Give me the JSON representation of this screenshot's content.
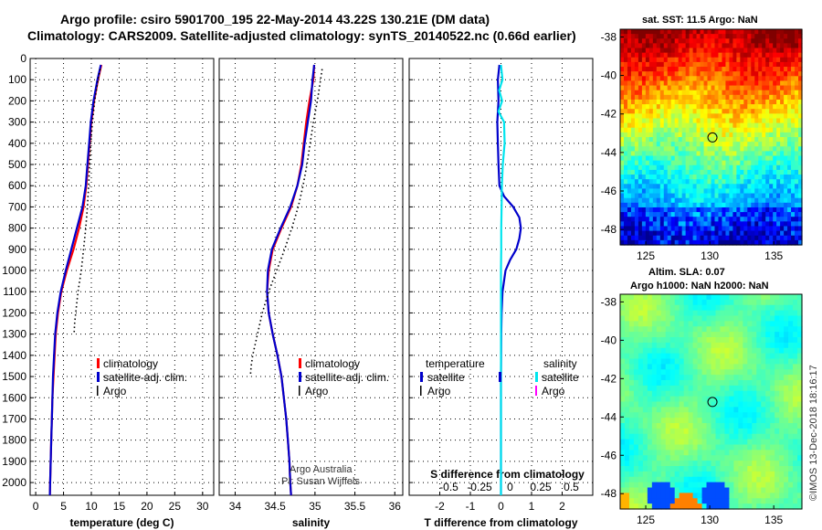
{
  "title_line1": "Argo profile: csiro 5901700_195 22-May-2014 43.22S 130.21E (DM data)",
  "title_line2": "Climatology: CARS2009. Satellite-adjusted climatology: synTS_20140522.nc (0.66d earlier)",
  "colors": {
    "climatology": "#ff0000",
    "satellite": "#0000cc",
    "argo": "#000000",
    "salinity_sat": "#00e5ee",
    "salinity_argo": "#ff00ff"
  },
  "credit": {
    "line1": "Argo Australia",
    "line2": "PI: Susan Wijffels"
  },
  "watermark": "©IMOS 13-Dec-2018 18:16:17",
  "legend": {
    "climatology": "climatology",
    "satellite_adj": "satellite-adj. clim.",
    "argo": "Argo",
    "temperature": "temperature",
    "salinity": "salinity",
    "satellite": "satellite"
  },
  "maps": {
    "sst_title": "sat. SST: 11.5 Argo: NaN",
    "sla_title1": "Altim. SLA: 0.07",
    "sla_title2": "Argo h1000: NaN h2000: NaN",
    "lat_ticks": [
      "-38",
      "-40",
      "-42",
      "-44",
      "-46",
      "-48"
    ],
    "lon_ticks": [
      "125",
      "130",
      "135"
    ],
    "lat_range": [
      -48.8,
      -37.6
    ],
    "lon_range": [
      123.0,
      137.2
    ],
    "float_lat": -43.22,
    "float_lon": 130.21
  },
  "chart_data": [
    {
      "type": "line",
      "xlabel": "temperature (deg C)",
      "ylabel": "",
      "xlim": [
        -1,
        32
      ],
      "ylim": [
        2060,
        0
      ],
      "xticks": [
        0,
        5,
        10,
        15,
        20,
        25,
        30
      ],
      "yticks": [
        0,
        100,
        200,
        300,
        400,
        500,
        600,
        700,
        800,
        900,
        1000,
        1100,
        1200,
        1300,
        1400,
        1500,
        1600,
        1700,
        1800,
        1900,
        2000
      ],
      "series": [
        {
          "name": "climatology",
          "depth": [
            30,
            100,
            200,
            300,
            400,
            500,
            600,
            700,
            800,
            900,
            1000,
            1100,
            1200,
            1300,
            1400,
            1500,
            1600,
            1700,
            1800,
            1900,
            2000,
            2060
          ],
          "values": [
            11.8,
            11.2,
            10.5,
            10.0,
            9.7,
            9.4,
            9.1,
            8.6,
            7.8,
            6.8,
            5.6,
            4.6,
            4.0,
            3.6,
            3.4,
            3.2,
            3.0,
            2.9,
            2.8,
            2.7,
            2.6,
            2.55
          ]
        },
        {
          "name": "satellite-adj. clim.",
          "depth": [
            30,
            100,
            200,
            300,
            400,
            500,
            600,
            700,
            800,
            900,
            1000,
            1100,
            1200,
            1300,
            1400,
            1500,
            1600,
            1700,
            1800,
            1900,
            2000,
            2060
          ],
          "values": [
            11.7,
            11.1,
            10.4,
            9.9,
            9.6,
            9.3,
            9.0,
            8.4,
            7.4,
            6.4,
            5.4,
            4.5,
            3.9,
            3.5,
            3.3,
            3.1,
            3.0,
            2.9,
            2.8,
            2.7,
            2.6,
            2.55
          ]
        },
        {
          "name": "Argo",
          "depth": [
            50,
            100,
            200,
            300,
            400,
            500,
            600,
            700,
            800,
            900,
            1000,
            1100,
            1200,
            1250,
            1300
          ],
          "values": [
            11.6,
            11.2,
            10.6,
            10.2,
            9.9,
            9.7,
            9.5,
            9.3,
            9.0,
            8.6,
            8.2,
            7.6,
            7.2,
            7.0,
            6.9
          ]
        }
      ]
    },
    {
      "type": "line",
      "xlabel": "salinity",
      "ylabel": "",
      "xlim": [
        33.8,
        36.1
      ],
      "ylim": [
        2060,
        0
      ],
      "xticks": [
        34,
        34.5,
        35,
        35.5,
        36
      ],
      "series": [
        {
          "name": "climatology",
          "depth": [
            30,
            100,
            200,
            300,
            400,
            500,
            600,
            700,
            800,
            900,
            1000,
            1100,
            1200,
            1300,
            1400,
            1500,
            1600,
            1700,
            1800,
            1900,
            2000,
            2060
          ],
          "values": [
            34.99,
            34.98,
            34.93,
            34.89,
            34.86,
            34.83,
            34.78,
            34.7,
            34.58,
            34.47,
            34.42,
            34.4,
            34.42,
            34.47,
            34.53,
            34.58,
            34.61,
            34.64,
            34.66,
            34.68,
            34.69,
            34.7
          ]
        },
        {
          "name": "satellite-adj. clim.",
          "depth": [
            30,
            100,
            200,
            300,
            400,
            500,
            600,
            700,
            800,
            900,
            1000,
            1100,
            1200,
            1300,
            1400,
            1500,
            1600,
            1700,
            1800,
            1900,
            2000,
            2060
          ],
          "values": [
            34.99,
            34.97,
            34.95,
            34.91,
            34.87,
            34.84,
            34.78,
            34.69,
            34.57,
            34.46,
            34.41,
            34.4,
            34.42,
            34.47,
            34.53,
            34.58,
            34.61,
            34.64,
            34.66,
            34.68,
            34.69,
            34.7
          ]
        },
        {
          "name": "Argo",
          "depth": [
            50,
            100,
            200,
            300,
            400,
            500,
            600,
            700,
            800,
            900,
            1000,
            1100,
            1200,
            1300,
            1400,
            1450,
            1500
          ],
          "values": [
            35.09,
            35.07,
            35.03,
            34.98,
            34.94,
            34.9,
            34.85,
            34.79,
            34.71,
            34.62,
            34.52,
            34.42,
            34.34,
            34.28,
            34.22,
            34.2,
            34.19
          ]
        }
      ]
    },
    {
      "type": "line",
      "xlabel": "T difference from climatology",
      "top_label": "S difference from climatology",
      "ylabel": "",
      "xlim": [
        -3,
        3
      ],
      "ylim": [
        2060,
        0
      ],
      "xticks": [
        -2,
        -1,
        0,
        1,
        2
      ],
      "top_ticks": [
        "-0.5",
        "-0.25",
        "0",
        "0.25",
        "0.5"
      ],
      "series": [
        {
          "name": "temperature satellite",
          "depth": [
            30,
            100,
            200,
            300,
            400,
            500,
            600,
            650,
            700,
            750,
            800,
            850,
            900,
            950,
            1000,
            1100,
            1200,
            1300,
            1500,
            1800,
            2000,
            2060
          ],
          "values": [
            -0.05,
            -0.1,
            -0.08,
            -0.12,
            -0.1,
            -0.08,
            -0.05,
            0.1,
            0.4,
            0.6,
            0.65,
            0.6,
            0.5,
            0.3,
            0.15,
            0.05,
            0.02,
            0.01,
            0.0,
            0.0,
            0.0,
            0.0
          ]
        },
        {
          "name": "salinity satellite",
          "depth": [
            30,
            100,
            150,
            200,
            250,
            300,
            400,
            500,
            600,
            700,
            800,
            900,
            1000,
            1200,
            1500,
            2060
          ],
          "values": [
            0.0,
            0.05,
            -0.06,
            0.04,
            -0.08,
            0.1,
            0.12,
            0.06,
            0.03,
            0.02,
            0.01,
            0.01,
            0.0,
            0.0,
            0.0,
            0.0
          ]
        }
      ]
    }
  ]
}
